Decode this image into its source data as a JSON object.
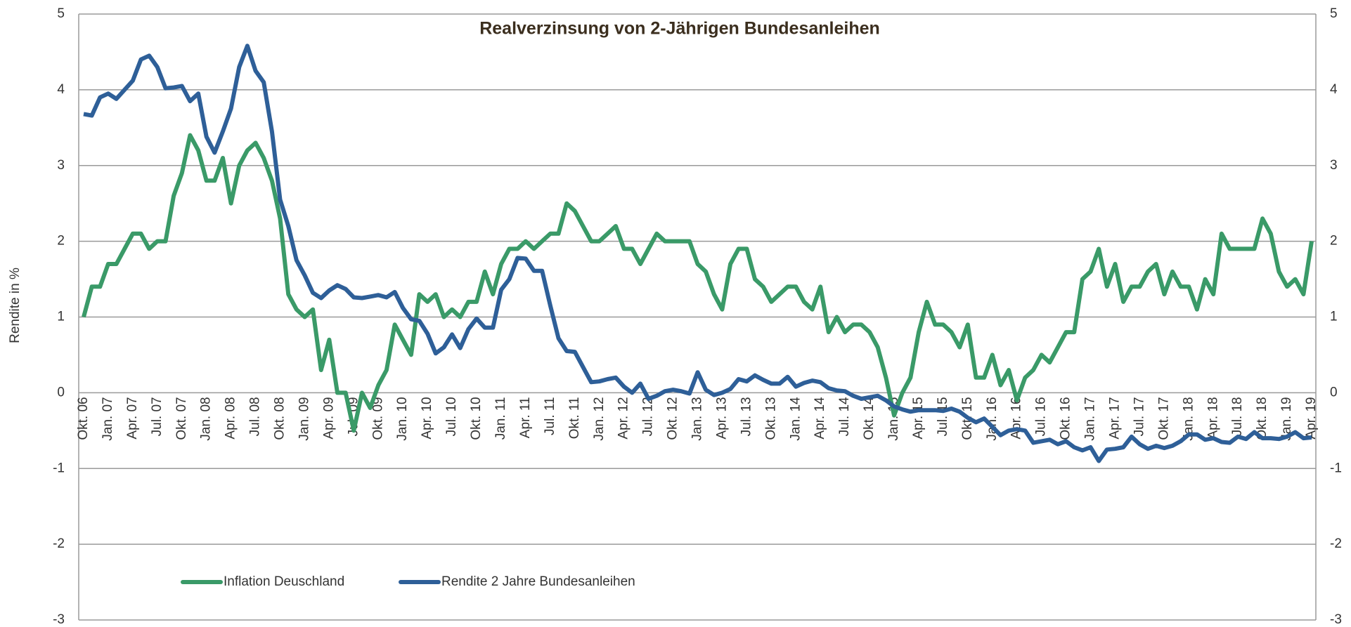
{
  "chart_data": {
    "type": "line",
    "title": "Realverzinsung von 2-Jährigen Bundesanleihen",
    "ylabel": "Rendite in %",
    "categories": [
      "Okt. 06",
      null,
      null,
      "Jan. 07",
      null,
      null,
      "Apr. 07",
      null,
      null,
      "Jul. 07",
      null,
      null,
      "Okt. 07",
      null,
      null,
      "Jan. 08",
      null,
      null,
      "Apr. 08",
      null,
      null,
      "Jul. 08",
      null,
      null,
      "Okt. 08",
      null,
      null,
      "Jan. 09",
      null,
      null,
      "Apr. 09",
      null,
      null,
      "Jul. 09",
      null,
      null,
      "Okt. 09",
      null,
      null,
      "Jan. 10",
      null,
      null,
      "Apr. 10",
      null,
      null,
      "Jul. 10",
      null,
      null,
      "Okt. 10",
      null,
      null,
      "Jan. 11",
      null,
      null,
      "Apr. 11",
      null,
      null,
      "Jul. 11",
      null,
      null,
      "Okt. 11",
      null,
      null,
      "Jan. 12",
      null,
      null,
      "Apr. 12",
      null,
      null,
      "Jul. 12",
      null,
      null,
      "Okt. 12",
      null,
      null,
      "Jan. 13",
      null,
      null,
      "Apr. 13",
      null,
      null,
      "Jul. 13",
      null,
      null,
      "Okt. 13",
      null,
      null,
      "Jan. 14",
      null,
      null,
      "Apr. 14",
      null,
      null,
      "Jul. 14",
      null,
      null,
      "Okt. 14",
      null,
      null,
      "Jan. 15",
      null,
      null,
      "Apr. 15",
      null,
      null,
      "Jul. 15",
      null,
      null,
      "Okt. 15",
      null,
      null,
      "Jan. 16",
      null,
      null,
      "Apr. 16",
      null,
      null,
      "Jul. 16",
      null,
      null,
      "Okt. 16",
      null,
      null,
      "Jan. 17",
      null,
      null,
      "Apr. 17",
      null,
      null,
      "Jul. 17",
      null,
      null,
      "Okt. 17",
      null,
      null,
      "Jan. 18",
      null,
      null,
      "Apr. 18",
      null,
      null,
      "Jul. 18",
      null,
      null,
      "Okt. 18",
      null,
      null,
      "Jan. 19",
      null,
      null,
      "Apr. 19"
    ],
    "series": [
      {
        "name": "Inflation Deuschland",
        "color": "#3a9a68",
        "values": [
          1.0,
          1.4,
          1.4,
          1.7,
          1.7,
          1.9,
          2.1,
          2.1,
          1.9,
          2.0,
          2.0,
          2.6,
          2.9,
          3.4,
          3.2,
          2.8,
          2.8,
          3.1,
          2.5,
          3.0,
          3.2,
          3.3,
          3.1,
          2.8,
          2.3,
          1.3,
          1.1,
          1.0,
          1.1,
          0.3,
          0.7,
          0.0,
          0.0,
          -0.5,
          0.0,
          -0.2,
          0.1,
          0.3,
          0.9,
          0.7,
          0.5,
          1.3,
          1.2,
          1.3,
          1.0,
          1.1,
          1.0,
          1.2,
          1.2,
          1.6,
          1.3,
          1.7,
          1.9,
          1.9,
          2.0,
          1.9,
          2.0,
          2.1,
          2.1,
          2.5,
          2.4,
          2.2,
          2.0,
          2.0,
          2.1,
          2.2,
          1.9,
          1.9,
          1.7,
          1.9,
          2.1,
          2.0,
          2.0,
          2.0,
          2.0,
          1.7,
          1.6,
          1.3,
          1.1,
          1.7,
          1.9,
          1.9,
          1.5,
          1.4,
          1.2,
          1.3,
          1.4,
          1.4,
          1.2,
          1.1,
          1.4,
          0.8,
          1.0,
          0.8,
          0.9,
          0.9,
          0.8,
          0.6,
          0.2,
          -0.3,
          0.0,
          0.2,
          0.8,
          1.2,
          0.9,
          0.9,
          0.8,
          0.6,
          0.9,
          0.2,
          0.2,
          0.5,
          0.1,
          0.3,
          -0.1,
          0.2,
          0.3,
          0.5,
          0.4,
          0.6,
          0.8,
          0.8,
          1.5,
          1.6,
          1.9,
          1.4,
          1.7,
          1.2,
          1.4,
          1.4,
          1.6,
          1.7,
          1.3,
          1.6,
          1.4,
          1.4,
          1.1,
          1.5,
          1.3,
          2.1,
          1.9,
          1.9,
          1.9,
          1.9,
          2.3,
          2.1,
          1.6,
          1.4,
          1.5,
          1.3,
          2.0
        ]
      },
      {
        "name": "Rendite 2 Jahre Bundesanleihen",
        "color": "#2e5f98",
        "values": [
          3.68,
          3.66,
          3.9,
          3.95,
          3.88,
          4.0,
          4.12,
          4.4,
          4.45,
          4.3,
          4.02,
          4.03,
          4.05,
          3.85,
          3.95,
          3.38,
          3.17,
          3.45,
          3.75,
          4.3,
          4.58,
          4.25,
          4.1,
          3.45,
          2.55,
          2.2,
          1.75,
          1.55,
          1.32,
          1.25,
          1.35,
          1.42,
          1.37,
          1.26,
          1.25,
          1.27,
          1.29,
          1.26,
          1.33,
          1.12,
          0.97,
          0.95,
          0.78,
          0.52,
          0.6,
          0.77,
          0.59,
          0.84,
          0.98,
          0.86,
          0.86,
          1.36,
          1.5,
          1.78,
          1.77,
          1.61,
          1.61,
          1.15,
          0.72,
          0.55,
          0.54,
          0.34,
          0.14,
          0.15,
          0.18,
          0.2,
          0.08,
          0.0,
          0.12,
          -0.08,
          -0.04,
          0.02,
          0.04,
          0.02,
          -0.01,
          0.27,
          0.04,
          -0.03,
          0.0,
          0.05,
          0.18,
          0.15,
          0.23,
          0.17,
          0.12,
          0.12,
          0.21,
          0.08,
          0.13,
          0.16,
          0.14,
          0.06,
          0.03,
          0.02,
          -0.04,
          -0.08,
          -0.06,
          -0.04,
          -0.1,
          -0.18,
          -0.22,
          -0.25,
          -0.23,
          -0.23,
          -0.23,
          -0.24,
          -0.21,
          -0.25,
          -0.33,
          -0.39,
          -0.34,
          -0.45,
          -0.56,
          -0.5,
          -0.48,
          -0.5,
          -0.66,
          -0.64,
          -0.62,
          -0.68,
          -0.64,
          -0.72,
          -0.76,
          -0.72,
          -0.9,
          -0.75,
          -0.74,
          -0.72,
          -0.58,
          -0.68,
          -0.74,
          -0.7,
          -0.73,
          -0.7,
          -0.64,
          -0.55,
          -0.55,
          -0.62,
          -0.6,
          -0.65,
          -0.66,
          -0.58,
          -0.61,
          -0.52,
          -0.6,
          -0.6,
          -0.61,
          -0.58,
          -0.52,
          -0.6,
          -0.59
        ]
      }
    ],
    "ylim": [
      -3,
      5
    ],
    "yticks": [
      -3,
      -2,
      -1,
      0,
      1,
      2,
      3,
      4,
      5
    ],
    "y2lim": [
      -3,
      5
    ],
    "y2ticks": [
      -3,
      -2,
      -1,
      0,
      1,
      2,
      3,
      4,
      5
    ],
    "grid": true
  }
}
